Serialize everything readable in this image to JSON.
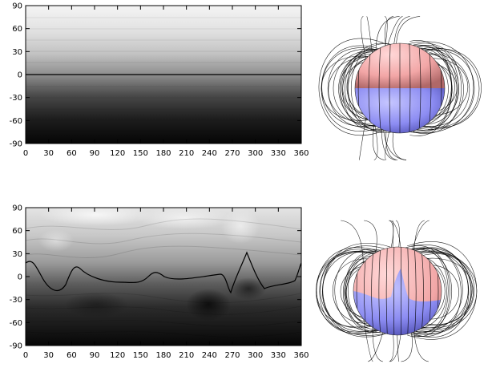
{
  "panels": [
    {
      "id": "top",
      "y_ticks": [
        "90",
        "60",
        "30",
        "0",
        "-30",
        "-60",
        "-90"
      ],
      "x_ticks": [
        "0",
        "30",
        "60",
        "90",
        "120",
        "150",
        "180",
        "210",
        "240",
        "270",
        "300",
        "330",
        "360"
      ]
    },
    {
      "id": "bottom",
      "y_ticks": [
        "90",
        "60",
        "30",
        "0",
        "-30",
        "-60",
        "-90"
      ],
      "x_ticks": [
        "0",
        "30",
        "60",
        "90",
        "120",
        "150",
        "180",
        "210",
        "240",
        "270",
        "300",
        "330",
        "360"
      ]
    }
  ],
  "colors": {
    "north_hemisphere": "#f2a6a6",
    "south_hemisphere": "#8c8cf2",
    "field_lines": "#000000",
    "contour_light": "#f4f4f4",
    "contour_dark": "#050505"
  }
}
